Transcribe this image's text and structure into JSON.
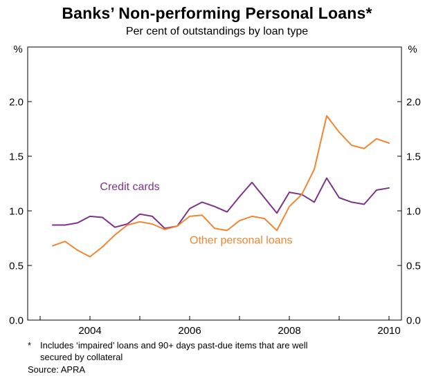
{
  "title": "Banks’ Non-performing Personal Loans*",
  "subtitle": "Per cent of outstandings by loan type",
  "footnote": {
    "marker": "*",
    "line1": "Includes ‘impaired’ loans and 90+ days past-due items that are well",
    "line2": "secured by collateral",
    "source": "Source: APRA"
  },
  "chart_data": {
    "type": "line",
    "title": "Banks’ Non-performing Personal Loans*",
    "subtitle": "Per cent of outstandings by loan type",
    "unit": "%",
    "xlim": [
      2002.75,
      2010.25
    ],
    "ylim": [
      0,
      2.5
    ],
    "yticks": [
      0,
      0.5,
      1.0,
      1.5,
      2.0
    ],
    "ytick_labels": [
      "0.0",
      "0.5",
      "1.0",
      "1.5",
      "2.0"
    ],
    "xticks": [
      2004,
      2006,
      2008,
      2010
    ],
    "grid": false,
    "legend": "inline-labels",
    "x": [
      2003.25,
      2003.5,
      2003.75,
      2004.0,
      2004.25,
      2004.5,
      2004.75,
      2005.0,
      2005.25,
      2005.5,
      2005.75,
      2006.0,
      2006.25,
      2006.5,
      2006.75,
      2007.0,
      2007.25,
      2007.5,
      2007.75,
      2008.0,
      2008.25,
      2008.5,
      2008.75,
      2009.0,
      2009.25,
      2009.5,
      2009.75,
      2010.0
    ],
    "series": [
      {
        "name": "Credit cards",
        "color": "#7d3189",
        "label_pos": {
          "x": 2004.2,
          "y": 1.19
        },
        "values": [
          0.87,
          0.87,
          0.89,
          0.95,
          0.94,
          0.85,
          0.88,
          0.97,
          0.95,
          0.84,
          0.86,
          1.02,
          1.08,
          1.04,
          0.99,
          1.13,
          1.26,
          1.12,
          0.98,
          1.17,
          1.15,
          1.08,
          1.3,
          1.12,
          1.08,
          1.06,
          1.19,
          1.21
        ]
      },
      {
        "name": "Other personal loans",
        "color": "#f08532",
        "label_pos": {
          "x": 2006.0,
          "y": 0.7
        },
        "values": [
          0.68,
          0.72,
          0.64,
          0.58,
          0.67,
          0.78,
          0.87,
          0.9,
          0.88,
          0.83,
          0.86,
          0.95,
          0.96,
          0.84,
          0.82,
          0.91,
          0.95,
          0.93,
          0.82,
          1.04,
          1.15,
          1.38,
          1.87,
          1.72,
          1.6,
          1.57,
          1.66,
          1.62
        ]
      }
    ]
  }
}
